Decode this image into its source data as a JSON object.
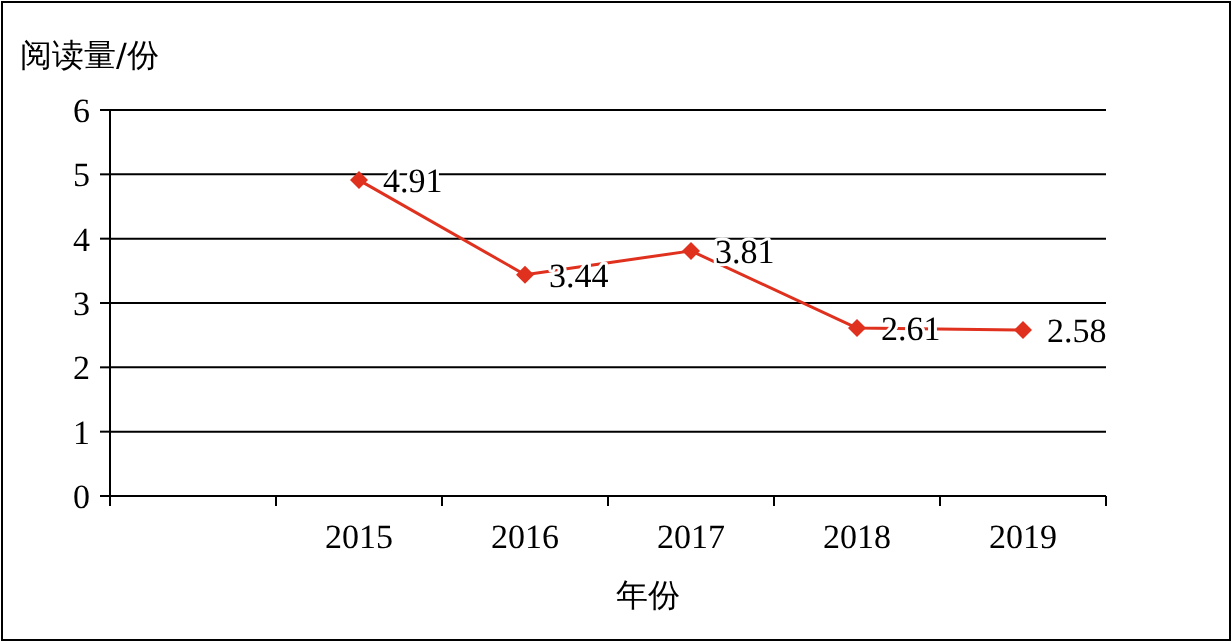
{
  "chart_data": {
    "type": "line",
    "ylabel": "阅读量/份",
    "xlabel": "年份",
    "categories": [
      null,
      "2015",
      "2016",
      "2017",
      "2018",
      "2019"
    ],
    "series": [
      {
        "color": "#e0301e",
        "values": [
          null,
          4.91,
          3.44,
          3.81,
          2.61,
          2.58
        ]
      }
    ],
    "ylim": [
      0,
      6
    ],
    "yticks": [
      0,
      1,
      2,
      3,
      4,
      5,
      6
    ],
    "grid": "y",
    "marker": "diamond",
    "line_style": "solid",
    "data_labels": true
  }
}
